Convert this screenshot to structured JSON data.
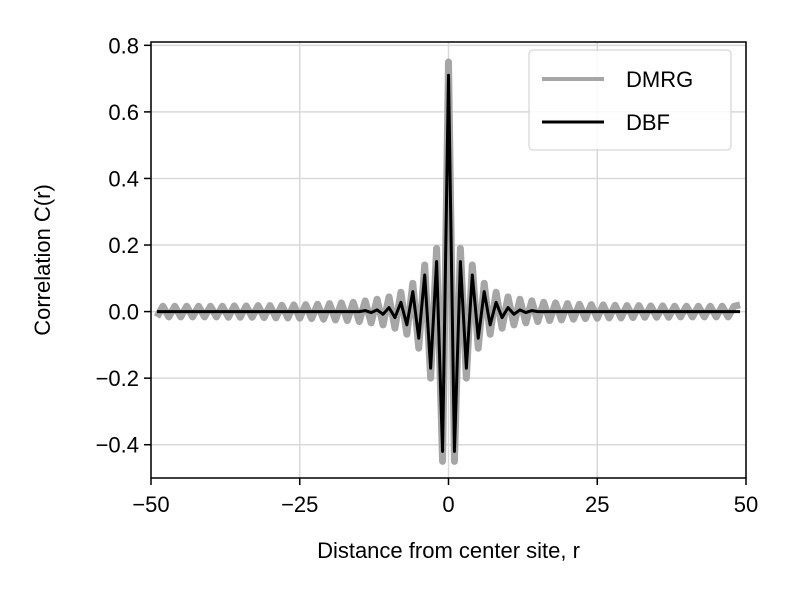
{
  "chart_data": {
    "type": "line",
    "title": "",
    "xlabel": "Distance from center site, r",
    "ylabel": "Correlation C(r)",
    "xlim": [
      -50,
      50
    ],
    "ylim": [
      -0.5,
      0.81
    ],
    "xticks": [
      -50,
      -25,
      0,
      25,
      50
    ],
    "yticks": [
      -0.4,
      -0.2,
      0.0,
      0.2,
      0.4,
      0.6,
      0.8
    ],
    "xtick_labels": [
      "−50",
      "−25",
      "0",
      "25",
      "50"
    ],
    "ytick_labels": [
      "−0.4",
      "−0.2",
      "0.0",
      "0.2",
      "0.4",
      "0.6",
      "0.8"
    ],
    "grid": true,
    "legend_position": "top-right",
    "series": [
      {
        "name": "DMRG",
        "color": "#a6a6a6",
        "x": [
          -49,
          -48,
          -47,
          -46,
          -45,
          -44,
          -43,
          -42,
          -41,
          -40,
          -39,
          -38,
          -37,
          -36,
          -35,
          -34,
          -33,
          -32,
          -31,
          -30,
          -29,
          -28,
          -27,
          -26,
          -25,
          -24,
          -23,
          -22,
          -21,
          -20,
          -19,
          -18,
          -17,
          -16,
          -15,
          -14,
          -13,
          -12,
          -11,
          -10,
          -9,
          -8,
          -7,
          -6,
          -5,
          -4,
          -3,
          -2,
          -1,
          0,
          1,
          2,
          3,
          4,
          5,
          6,
          7,
          8,
          9,
          10,
          11,
          12,
          13,
          14,
          15,
          16,
          17,
          18,
          19,
          20,
          21,
          22,
          23,
          24,
          25,
          26,
          27,
          28,
          29,
          30,
          31,
          32,
          33,
          34,
          35,
          36,
          37,
          38,
          39,
          40,
          41,
          42,
          43,
          44,
          45,
          46,
          47,
          48,
          49
        ],
        "y": [
          -0.016,
          0.016,
          -0.016,
          0.016,
          -0.016,
          0.016,
          -0.016,
          0.016,
          -0.016,
          0.016,
          -0.016,
          0.016,
          -0.017,
          0.017,
          -0.017,
          0.017,
          -0.017,
          0.018,
          -0.018,
          0.018,
          -0.019,
          0.019,
          -0.019,
          0.02,
          -0.02,
          0.021,
          -0.021,
          0.022,
          -0.023,
          0.024,
          -0.025,
          0.026,
          -0.027,
          0.028,
          -0.03,
          0.032,
          -0.034,
          0.037,
          -0.04,
          0.044,
          -0.05,
          0.058,
          -0.068,
          0.085,
          -0.11,
          0.14,
          -0.2,
          0.19,
          -0.45,
          0.75,
          -0.45,
          0.19,
          -0.2,
          0.14,
          -0.11,
          0.085,
          -0.068,
          0.058,
          -0.05,
          0.044,
          -0.04,
          0.037,
          -0.034,
          0.032,
          -0.03,
          0.028,
          -0.027,
          0.026,
          -0.025,
          0.024,
          -0.023,
          0.022,
          -0.021,
          0.021,
          -0.02,
          0.02,
          -0.019,
          0.019,
          -0.019,
          0.018,
          -0.018,
          0.018,
          -0.017,
          0.017,
          -0.017,
          0.017,
          -0.017,
          0.016,
          -0.016,
          0.016,
          -0.016,
          0.016,
          -0.016,
          0.016,
          -0.016,
          0.016,
          -0.016,
          0.016,
          0.02
        ]
      },
      {
        "name": "DBF",
        "color": "#000000",
        "x": [
          -49,
          -48,
          -47,
          -46,
          -45,
          -44,
          -43,
          -42,
          -41,
          -40,
          -39,
          -38,
          -37,
          -36,
          -35,
          -34,
          -33,
          -32,
          -31,
          -30,
          -29,
          -28,
          -27,
          -26,
          -25,
          -24,
          -23,
          -22,
          -21,
          -20,
          -19,
          -18,
          -17,
          -16,
          -15,
          -14,
          -13,
          -12,
          -11,
          -10,
          -9,
          -8,
          -7,
          -6,
          -5,
          -4,
          -3,
          -2,
          -1,
          0,
          1,
          2,
          3,
          4,
          5,
          6,
          7,
          8,
          9,
          10,
          11,
          12,
          13,
          14,
          15,
          16,
          17,
          18,
          19,
          20,
          21,
          22,
          23,
          24,
          25,
          26,
          27,
          28,
          29,
          30,
          31,
          32,
          33,
          34,
          35,
          36,
          37,
          38,
          39,
          40,
          41,
          42,
          43,
          44,
          45,
          46,
          47,
          48,
          49
        ],
        "y": [
          0,
          0,
          0,
          0,
          0,
          0,
          0,
          0,
          0,
          0,
          0,
          0,
          0,
          0,
          0,
          0,
          0,
          0,
          0,
          0,
          0,
          0,
          0,
          0,
          0,
          0,
          0,
          0,
          0,
          0,
          0,
          0,
          0,
          0,
          0,
          0.003,
          -0.003,
          0.005,
          -0.008,
          0.012,
          -0.018,
          0.028,
          -0.04,
          0.06,
          -0.08,
          0.11,
          -0.17,
          0.15,
          -0.42,
          0.71,
          -0.42,
          0.15,
          -0.17,
          0.11,
          -0.08,
          0.06,
          -0.04,
          0.028,
          -0.018,
          0.012,
          -0.008,
          0.005,
          -0.003,
          0.003,
          0,
          0,
          0,
          0,
          0,
          0,
          0,
          0,
          0,
          0,
          0,
          0,
          0,
          0,
          0,
          0,
          0,
          0,
          0,
          0,
          0,
          0,
          0,
          0,
          0,
          0,
          0,
          0,
          0,
          0,
          0,
          0,
          0,
          0,
          0
        ]
      }
    ]
  }
}
